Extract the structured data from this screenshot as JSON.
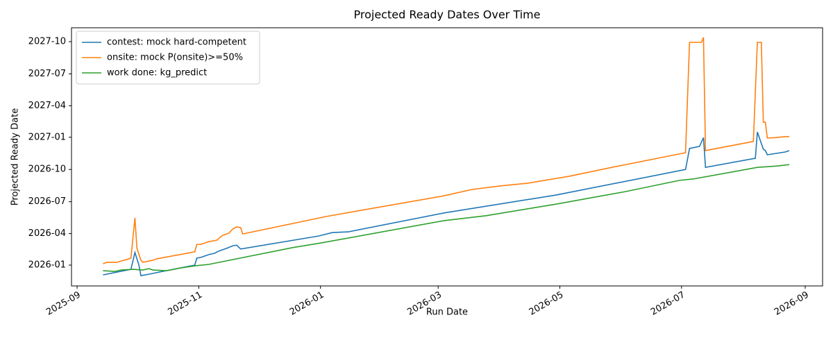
{
  "chart_data": {
    "type": "line",
    "title": "Projected Ready Dates Over Time",
    "x_label": "Run Date",
    "y_label": "Projected Ready Date",
    "grid": false,
    "legend": "upper left",
    "xlim": [
      20329.2,
      20705.7
    ],
    "ylim": [
      20394.6,
      21131.6
    ],
    "xticks": [
      {
        "value": 20332,
        "label": "2025-09"
      },
      {
        "value": 20393,
        "label": "2025-11"
      },
      {
        "value": 20454,
        "label": "2026-01"
      },
      {
        "value": 20513,
        "label": "2026-03"
      },
      {
        "value": 20574,
        "label": "2026-05"
      },
      {
        "value": 20635,
        "label": "2026-07"
      },
      {
        "value": 20697,
        "label": "2026-09"
      }
    ],
    "yticks": [
      {
        "value": 20454,
        "label": "2026-01"
      },
      {
        "value": 20544,
        "label": "2026-04"
      },
      {
        "value": 20635,
        "label": "2026-07"
      },
      {
        "value": 20727,
        "label": "2026-10"
      },
      {
        "value": 20819,
        "label": "2027-01"
      },
      {
        "value": 20909,
        "label": "2027-04"
      },
      {
        "value": 21000,
        "label": "2027-07"
      },
      {
        "value": 21092,
        "label": "2027-10"
      }
    ],
    "series": [
      {
        "name": "contest: mock hard-competent",
        "color": "#1f77b4",
        "x": [
          20345,
          20359,
          20361,
          20363,
          20364,
          20368,
          20373,
          20391,
          20392,
          20394,
          20398,
          20401,
          20403,
          20407,
          20410,
          20412,
          20414,
          20453,
          20460,
          20468,
          20516,
          20572,
          20637,
          20639,
          20644,
          20646,
          20647,
          20672,
          20673,
          20676,
          20677,
          20678,
          20687,
          20689
        ],
        "values": [
          20426,
          20442,
          20490,
          20454,
          20424,
          20428,
          20434,
          20454,
          20474,
          20476,
          20484,
          20488,
          20494,
          20502,
          20509,
          20511,
          20500,
          20537,
          20547,
          20549,
          20603,
          20654,
          20727,
          20787,
          20793,
          20818,
          20733,
          20759,
          20834,
          20785,
          20781,
          20769,
          20777,
          20781
        ]
      },
      {
        "name": "onsite: mock P(onsite)>=50%",
        "color": "#ff7f0e",
        "x": [
          20345,
          20347,
          20352,
          20358,
          20359,
          20361,
          20362,
          20364,
          20365,
          20370,
          20372,
          20391,
          20392,
          20394,
          20398,
          20402,
          20404,
          20405,
          20408,
          20410,
          20412,
          20414,
          20415,
          20457,
          20516,
          20530,
          20544,
          20558,
          20579,
          20600,
          20637,
          20639,
          20645,
          20646,
          20647,
          20671,
          20673,
          20675,
          20676,
          20677,
          20678,
          20682,
          20687,
          20689
        ],
        "values": [
          20458,
          20462,
          20462,
          20472,
          20474,
          20589,
          20502,
          20468,
          20462,
          20468,
          20472,
          20492,
          20513,
          20513,
          20521,
          20525,
          20535,
          20539,
          20545,
          20557,
          20563,
          20561,
          20543,
          20593,
          20652,
          20670,
          20680,
          20688,
          20708,
          20733,
          20775,
          21090,
          21090,
          21104,
          20781,
          20807,
          21090,
          21090,
          20862,
          20862,
          20817,
          20818,
          20821,
          20821
        ]
      },
      {
        "name": "work done: kg_predict",
        "color": "#2ca02c",
        "x": [
          20345,
          20351,
          20354,
          20360,
          20365,
          20368,
          20370,
          20377,
          20384,
          20391,
          20398,
          20440,
          20454,
          20516,
          20537,
          20572,
          20607,
          20634,
          20641,
          20673,
          20683,
          20689
        ],
        "values": [
          20438,
          20436,
          20440,
          20442,
          20440,
          20444,
          20440,
          20438,
          20446,
          20452,
          20456,
          20504,
          20517,
          20581,
          20595,
          20628,
          20664,
          20696,
          20700,
          20733,
          20737,
          20741
        ]
      }
    ]
  }
}
